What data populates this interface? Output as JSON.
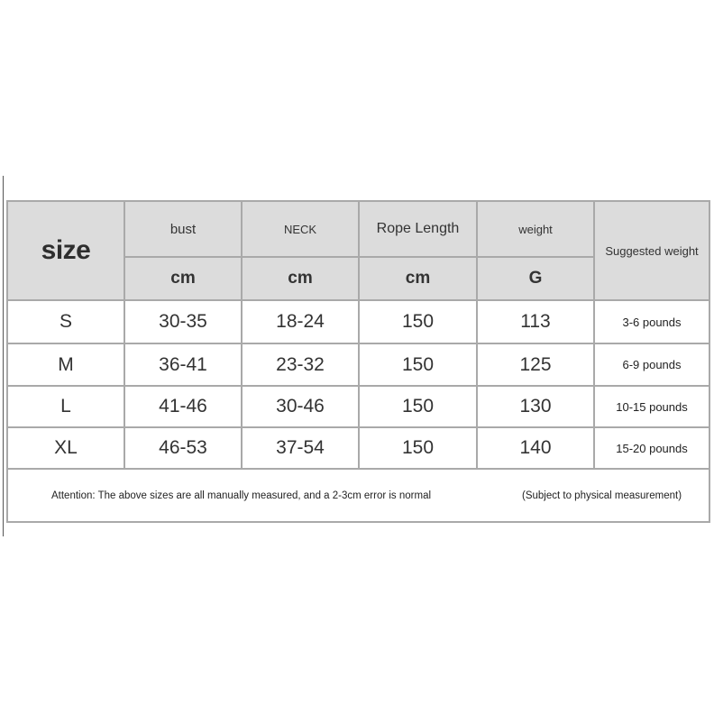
{
  "header": {
    "size": "size",
    "columns": [
      {
        "label": "bust",
        "unit": "cm"
      },
      {
        "label": "NECK",
        "unit": "cm"
      },
      {
        "label": "Rope Length",
        "unit": "cm"
      },
      {
        "label": "weight",
        "unit": "G"
      }
    ],
    "suggested": "Suggested weight"
  },
  "rows": [
    {
      "size": "S",
      "bust": "30-35",
      "neck": "18-24",
      "rope": "150",
      "weight": "113",
      "suggested": "3-6 pounds"
    },
    {
      "size": "M",
      "bust": "36-41",
      "neck": "23-32",
      "rope": "150",
      "weight": "125",
      "suggested": "6-9 pounds"
    },
    {
      "size": "L",
      "bust": "41-46",
      "neck": "30-46",
      "rope": "150",
      "weight": "130",
      "suggested": "10-15 pounds"
    },
    {
      "size": "XL",
      "bust": "46-53",
      "neck": "37-54",
      "rope": "150",
      "weight": "140",
      "suggested": "15-20 pounds"
    }
  ],
  "footer": {
    "note": "Attention: The above sizes are all manually measured, and a 2-3cm error is normal",
    "subject": "(Subject to physical measurement)"
  }
}
